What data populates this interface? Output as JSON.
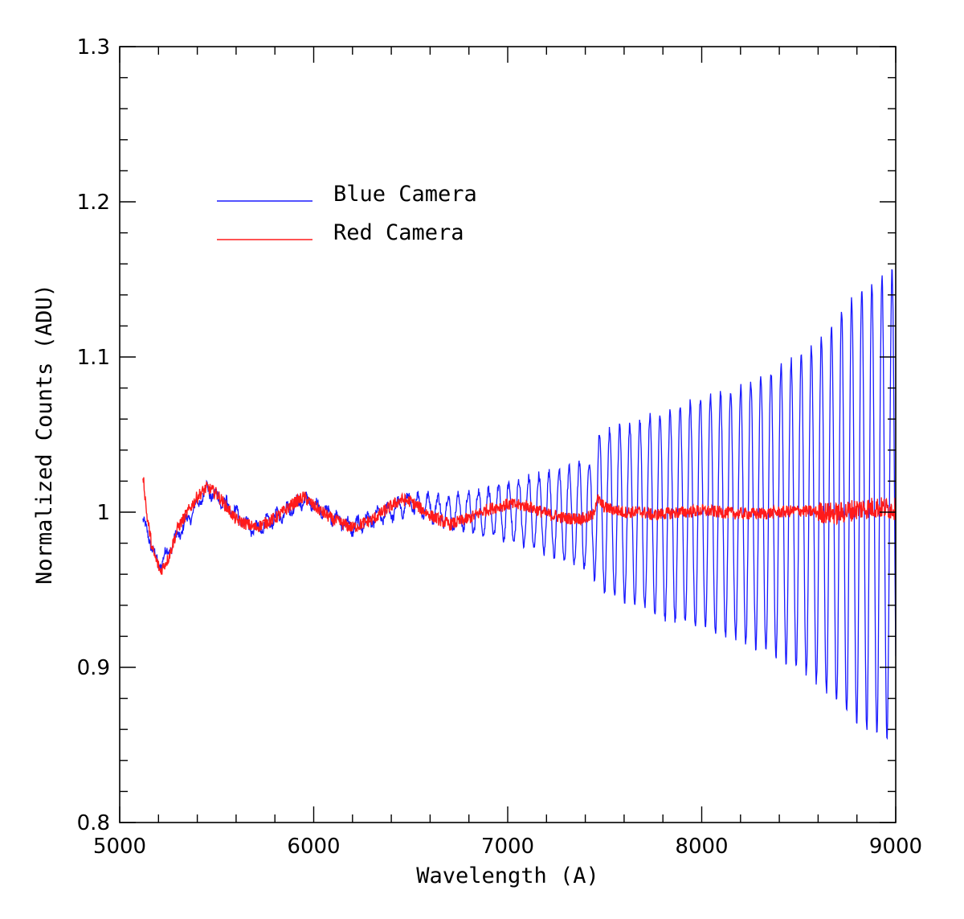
{
  "chart_data": {
    "type": "line",
    "title": "",
    "xlabel": "Wavelength (A)",
    "ylabel": "Normalized Counts (ADU)",
    "xlim": [
      5000,
      9000
    ],
    "ylim": [
      0.8,
      1.3
    ],
    "x_major_ticks": [
      5000,
      6000,
      7000,
      8000,
      9000
    ],
    "x_tick_labels": [
      "5000",
      "6000",
      "7000",
      "8000",
      "9000"
    ],
    "x_minor_step": 200,
    "y_major_ticks": [
      0.8,
      0.9,
      1.0,
      1.1,
      1.2,
      1.3
    ],
    "y_tick_labels": [
      "0.8",
      "0.9",
      "1",
      "1.1",
      "1.2",
      "1.3"
    ],
    "y_minor_step": 0.02,
    "grid": false,
    "legend_position": "upper-left",
    "series": [
      {
        "name": "Blue Camera",
        "color": "#1a1aff",
        "x_start": 5120,
        "x_end": 9000,
        "envelope": {
          "x": [
            5120,
            5200,
            5450,
            5700,
            5950,
            6200,
            6500,
            6700,
            6900,
            7100,
            7300,
            7440,
            7460,
            7600,
            7800,
            8000,
            8200,
            8400,
            8600,
            8800,
            9000
          ],
          "baseline": [
            0.995,
            0.965,
            1.015,
            0.988,
            1.008,
            0.99,
            1.006,
            1.0,
            1.0,
            1.0,
            0.998,
            0.998,
            1.0,
            1.0,
            0.998,
            0.999,
            0.999,
            1.0,
            1.0,
            1.002,
            1.005
          ],
          "amplitude": [
            0.002,
            0.003,
            0.004,
            0.004,
            0.004,
            0.004,
            0.006,
            0.01,
            0.015,
            0.022,
            0.03,
            0.036,
            0.05,
            0.056,
            0.066,
            0.074,
            0.082,
            0.093,
            0.11,
            0.14,
            0.152
          ]
        },
        "period_A": 52
      },
      {
        "name": "Red Camera",
        "color": "#ff1a1a",
        "x_start": 5120,
        "x_end": 9000,
        "points": {
          "x": [
            5120,
            5140,
            5170,
            5210,
            5250,
            5300,
            5400,
            5450,
            5500,
            5600,
            5700,
            5800,
            5900,
            5950,
            6000,
            6100,
            6200,
            6300,
            6400,
            6450,
            6500,
            6600,
            6700,
            6800,
            6900,
            7000,
            7100,
            7200,
            7300,
            7400,
            7440,
            7460,
            7500,
            7600,
            7700,
            7750,
            7800,
            7900,
            8000,
            8100,
            8200,
            8300,
            8400,
            8500,
            8600,
            8700,
            8800,
            8900,
            9000
          ],
          "y": [
            1.025,
            0.998,
            0.975,
            0.962,
            0.97,
            0.99,
            1.01,
            1.016,
            1.012,
            0.995,
            0.99,
            0.996,
            1.006,
            1.01,
            1.004,
            0.995,
            0.99,
            0.995,
            1.004,
            1.008,
            1.007,
            0.998,
            0.992,
            0.996,
            1.002,
            1.005,
            1.004,
            0.999,
            0.996,
            0.996,
            0.998,
            1.009,
            1.003,
            1.0,
            1.0,
            0.998,
            0.999,
            1.0,
            1.001,
            1.0,
            0.999,
            0.999,
            1.0,
            1.001,
            1.0,
            0.999,
            1.002,
            1.003,
            1.002
          ]
        },
        "noise_amplitude": 0.004
      }
    ]
  }
}
